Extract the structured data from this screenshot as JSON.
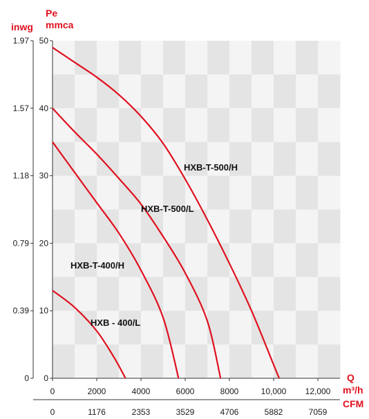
{
  "chart_data": {
    "type": "line",
    "title": "",
    "ylabel_left": "inwg",
    "ylabel_right_top": "Pe",
    "ylabel_right_bottom": "mmca",
    "xlabel_top": "Q",
    "xlabel_top_unit": "m³/h",
    "xlabel_bottom": "CFM",
    "xlim": [
      0,
      13000
    ],
    "ylim": [
      0,
      50
    ],
    "y_ticks_mmca": [
      0,
      10,
      20,
      30,
      40,
      50
    ],
    "y_ticks_inwg": [
      "0",
      "0.39",
      "0.79",
      "1.18",
      "1.57",
      "1.97"
    ],
    "x_ticks_m3h": [
      "0",
      "2000",
      "4000",
      "6000",
      "8000",
      "10,000",
      "12,000"
    ],
    "x_ticks_cfm": [
      "0",
      "1176",
      "2353",
      "3529",
      "4706",
      "5882",
      "7059"
    ],
    "grid": true,
    "series_color": "#e0101e",
    "series": [
      {
        "name": "HXB-T-500/H",
        "points": [
          [
            0,
            49.0
          ],
          [
            1000,
            46.8
          ],
          [
            2000,
            44.6
          ],
          [
            3000,
            42.0
          ],
          [
            4000,
            38.8
          ],
          [
            5000,
            34.8
          ],
          [
            6000,
            29.5
          ],
          [
            7000,
            23.5
          ],
          [
            8000,
            17.0
          ],
          [
            9000,
            10.0
          ],
          [
            10000,
            2.0
          ],
          [
            10250,
            0
          ]
        ]
      },
      {
        "name": "HXB-T-500/L",
        "points": [
          [
            0,
            40.0
          ],
          [
            1000,
            36.5
          ],
          [
            2000,
            33.2
          ],
          [
            3000,
            29.6
          ],
          [
            4000,
            25.8
          ],
          [
            5000,
            21.0
          ],
          [
            6000,
            15.6
          ],
          [
            7000,
            8.5
          ],
          [
            7600,
            0
          ]
        ]
      },
      {
        "name": "HXB-T-400/H",
        "points": [
          [
            0,
            35.0
          ],
          [
            1000,
            30.5
          ],
          [
            2000,
            26.0
          ],
          [
            3000,
            21.5
          ],
          [
            4000,
            16.0
          ],
          [
            5000,
            9.0
          ],
          [
            5700,
            0
          ]
        ]
      },
      {
        "name": "HXB - 400/L",
        "points": [
          [
            0,
            13.0
          ],
          [
            1000,
            10.5
          ],
          [
            2000,
            7.0
          ],
          [
            2800,
            3.0
          ],
          [
            3300,
            0
          ]
        ]
      }
    ]
  }
}
